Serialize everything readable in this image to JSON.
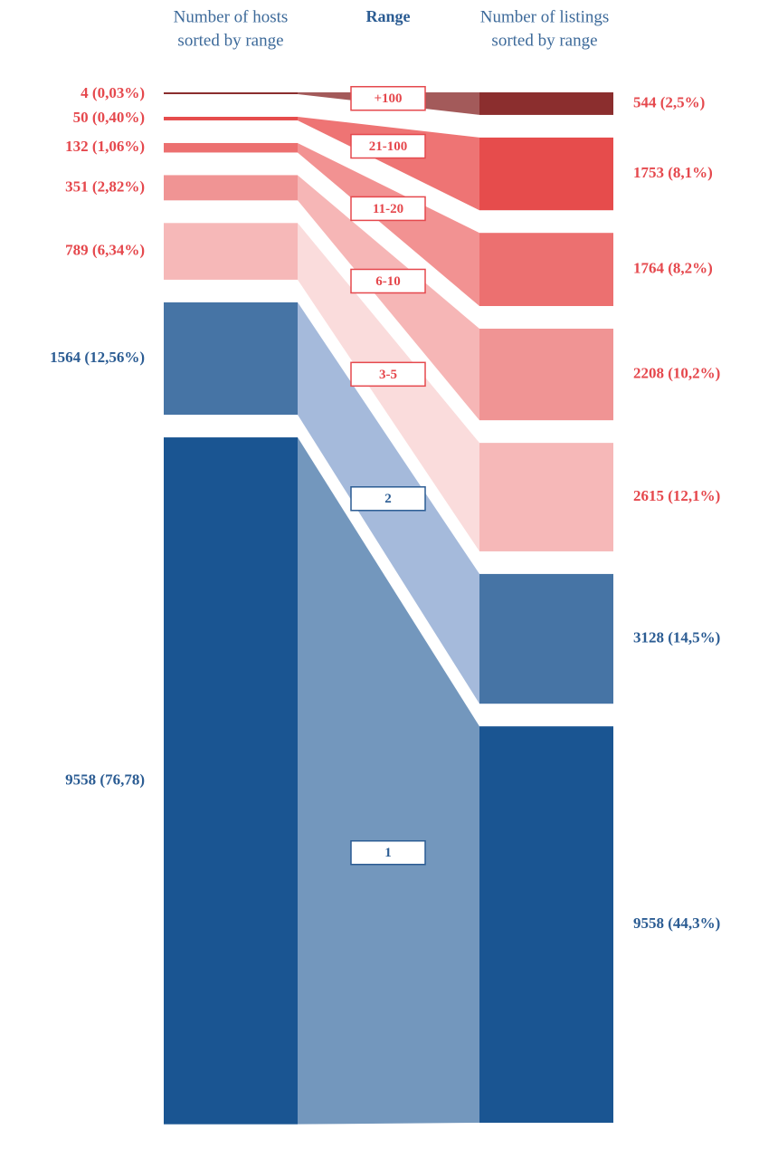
{
  "chart_data": {
    "type": "sankey",
    "range_title": "Range",
    "categories": [
      "+100",
      "21-100",
      "11-20",
      "6-10",
      "3-5",
      "2",
      "1"
    ],
    "colors": [
      "#8b2e2e",
      "#e64c4c",
      "#ec7070",
      "#f09494",
      "#f6b8b8",
      "#4674a5",
      "#1a5592"
    ],
    "flow_colors": [
      "#a35a5a",
      "#ee7474",
      "#f29292",
      "#f6b6b6",
      "#fadcdc",
      "#a5badb",
      "#7397bd"
    ],
    "label_colors": [
      "#e5484d",
      "#e5484d",
      "#e5484d",
      "#e5484d",
      "#e5484d",
      "#2b5c93",
      "#2b5c93"
    ],
    "columns": [
      {
        "title": [
          "Number of hosts",
          "sorted by range"
        ],
        "values": [
          4,
          50,
          132,
          351,
          789,
          1564,
          9558
        ],
        "value_labels": [
          "4 (0,03%)",
          "50 (0,40%)",
          "132 (1,06%)",
          "351 (2,82%)",
          "789 (6,34%)",
          "1564 (12,56%)",
          "9558 (76,78)"
        ]
      },
      {
        "title": [
          "Number of listings",
          "sorted by range"
        ],
        "values": [
          544,
          1753,
          1764,
          2208,
          2615,
          3128,
          9558
        ],
        "value_labels": [
          "544 (2,5%)",
          "1753 (8,1%)",
          "1764 (8,2%)",
          "2208 (10,2%)",
          "2615 (12,1%)",
          "3128 (14,5%)",
          "9558 (44,3%)"
        ]
      }
    ]
  }
}
